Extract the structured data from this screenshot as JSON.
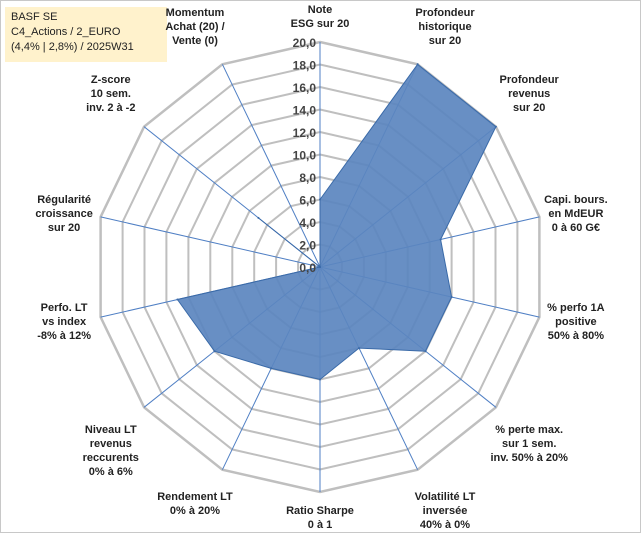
{
  "info": {
    "line1": "BASF SE",
    "line2": "C4_Actions / 2_EURO",
    "line3": "(4,4% | 2,8%) / 2025W31"
  },
  "chart_data": {
    "type": "radar",
    "r_min": 0,
    "r_max": 20,
    "ticks": [
      "0,0",
      "2,0",
      "4,0",
      "6,0",
      "8,0",
      "10,0",
      "12,0",
      "14,0",
      "16,0",
      "18,0",
      "20,0"
    ],
    "tick_values": [
      0,
      2,
      4,
      6,
      8,
      10,
      12,
      14,
      16,
      18,
      20
    ],
    "categories": [
      [
        "Note",
        "ESG sur 20"
      ],
      [
        "Profondeur",
        "historique",
        "sur 20"
      ],
      [
        "Profondeur",
        "revenus",
        "sur 20"
      ],
      [
        "Capi. bours.",
        "en MdEUR",
        "0 à 60 G€"
      ],
      [
        "% perfo 1A",
        "positive",
        "50% à 80%"
      ],
      [
        "% perte max.",
        "sur 1 sem.",
        "inv. 50% à 20%"
      ],
      [
        "Volatilité LT",
        "inversée",
        "40% à 0%"
      ],
      [
        "Ratio Sharpe",
        "0 à 1"
      ],
      [
        "Rendement LT",
        "0% à 20%"
      ],
      [
        "Niveau LT",
        "revenus",
        "reccurents",
        "0% à 6%"
      ],
      [
        "Perfo. LT",
        "vs index",
        "-8% à 12%"
      ],
      [
        "Régularité",
        "croissance",
        "sur 20"
      ],
      [
        "Z-score",
        "10 sem.",
        "inv. 2 à -2"
      ],
      [
        "Momentum",
        "Achat (20) /",
        "Vente (0)"
      ]
    ],
    "values": [
      6,
      20,
      20,
      11,
      12,
      12,
      8,
      10,
      10,
      12,
      13,
      0,
      7,
      0
    ],
    "fill_color": "#5b86bf",
    "line_color": "#3a6aa8",
    "axis_color": "#4f7fc4",
    "grid_color": "#bfbfbf",
    "grid": true,
    "legend": "none"
  }
}
